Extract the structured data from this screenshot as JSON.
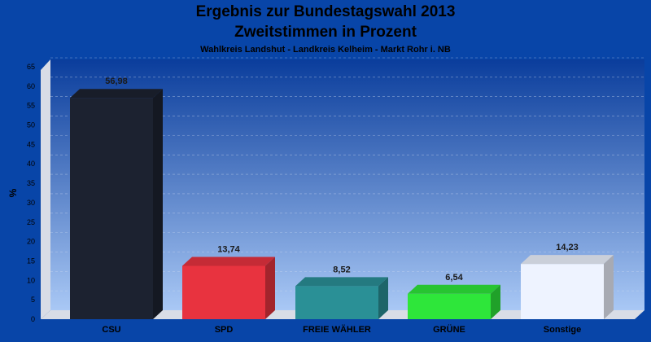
{
  "chart_data": {
    "type": "bar",
    "title": "Ergebnis zur Bundestagswahl 2013",
    "subtitle": "Zweitstimmen in Prozent",
    "caption": "Wahlkreis Landshut - Landkreis Kelheim - Markt Rohr i. NB",
    "ylabel": "%",
    "xlabel": "",
    "ylim": [
      0,
      65
    ],
    "ytick_step": 5,
    "grid": true,
    "categories": [
      "CSU",
      "SPD",
      "FREIE WÄHLER",
      "GRÜNE",
      "Sonstige"
    ],
    "values": [
      56.98,
      13.74,
      8.52,
      6.54,
      14.23
    ],
    "value_labels": [
      "56,98",
      "13,74",
      "8,52",
      "6,54",
      "14,23"
    ],
    "colors": [
      "#1c2230",
      "#e8333f",
      "#2a9096",
      "#2ee63a",
      "#eef3ff"
    ],
    "background_colors": {
      "page": "#0845a8",
      "plot_top": "#0a3d9c",
      "plot_bottom": "#a9c8f5"
    }
  }
}
